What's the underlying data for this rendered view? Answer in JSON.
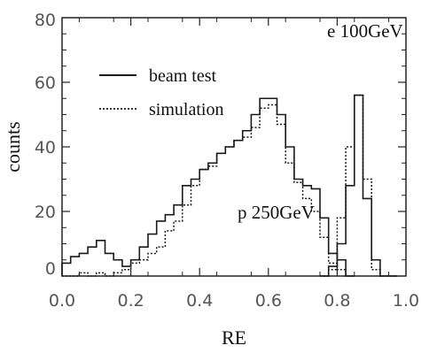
{
  "chart_data": {
    "type": "line",
    "title": "",
    "xlabel": "RE",
    "ylabel": "counts",
    "xlim": [
      0.0,
      1.0
    ],
    "ylim": [
      0,
      80
    ],
    "xticks": [
      "0.0",
      "0.2",
      "0.4",
      "0.6",
      "0.8",
      "1.0"
    ],
    "yticks": [
      "0",
      "20",
      "40",
      "60",
      "80"
    ],
    "grid": false,
    "legend_position": "upper-left",
    "bin_width": 0.025,
    "annotations": [
      "e 100GeV",
      "p 250GeV"
    ],
    "series": [
      {
        "name": "beam test",
        "style": "solid",
        "group": "p 250GeV",
        "x": [
          0.0,
          0.025,
          0.05,
          0.075,
          0.1,
          0.125,
          0.15,
          0.175,
          0.2,
          0.225,
          0.25,
          0.275,
          0.3,
          0.325,
          0.35,
          0.375,
          0.4,
          0.425,
          0.45,
          0.475,
          0.5,
          0.525,
          0.55,
          0.575,
          0.6,
          0.625,
          0.65,
          0.675,
          0.7,
          0.725,
          0.75,
          0.775,
          0.8,
          0.825
        ],
        "y": [
          4,
          6,
          7,
          9,
          11,
          7,
          5,
          3,
          5,
          9,
          13,
          17,
          19,
          22,
          28,
          30,
          33,
          35,
          38,
          40,
          42,
          45,
          50,
          55,
          55,
          50,
          40,
          30,
          28,
          27,
          18,
          7,
          5,
          0
        ]
      },
      {
        "name": "simulation",
        "style": "dotted",
        "group": "p 250GeV",
        "x": [
          0.0,
          0.025,
          0.05,
          0.075,
          0.1,
          0.125,
          0.15,
          0.175,
          0.2,
          0.225,
          0.25,
          0.275,
          0.3,
          0.325,
          0.35,
          0.375,
          0.4,
          0.425,
          0.45,
          0.475,
          0.5,
          0.525,
          0.55,
          0.575,
          0.6,
          0.625,
          0.65,
          0.675,
          0.7,
          0.725,
          0.75,
          0.775,
          0.8,
          0.825
        ],
        "y": [
          0,
          0,
          1,
          0,
          1,
          0,
          1,
          2,
          4,
          5,
          7,
          9,
          14,
          17,
          22,
          28,
          33,
          34,
          38,
          40,
          42,
          43,
          46,
          52,
          53,
          47,
          35,
          29,
          24,
          20,
          12,
          4,
          2,
          0
        ]
      },
      {
        "name": "beam test",
        "style": "solid",
        "group": "e 100GeV",
        "x": [
          0.75,
          0.775,
          0.8,
          0.825,
          0.85,
          0.875,
          0.9,
          0.925,
          0.95
        ],
        "y": [
          0,
          3,
          10,
          28,
          56,
          24,
          5,
          0,
          0
        ]
      },
      {
        "name": "simulation",
        "style": "dotted",
        "group": "e 100GeV",
        "x": [
          0.75,
          0.775,
          0.8,
          0.825,
          0.85,
          0.875,
          0.9,
          0.925,
          0.95
        ],
        "y": [
          0,
          2,
          18,
          40,
          56,
          30,
          2,
          0,
          0
        ]
      }
    ]
  },
  "legend": [
    {
      "label": "beam test",
      "style": "solid"
    },
    {
      "label": "simulation",
      "style": "dotted"
    }
  ],
  "colors": {
    "line": "#1a1a1a",
    "axis": "#222222",
    "tick_label": "#555555"
  }
}
